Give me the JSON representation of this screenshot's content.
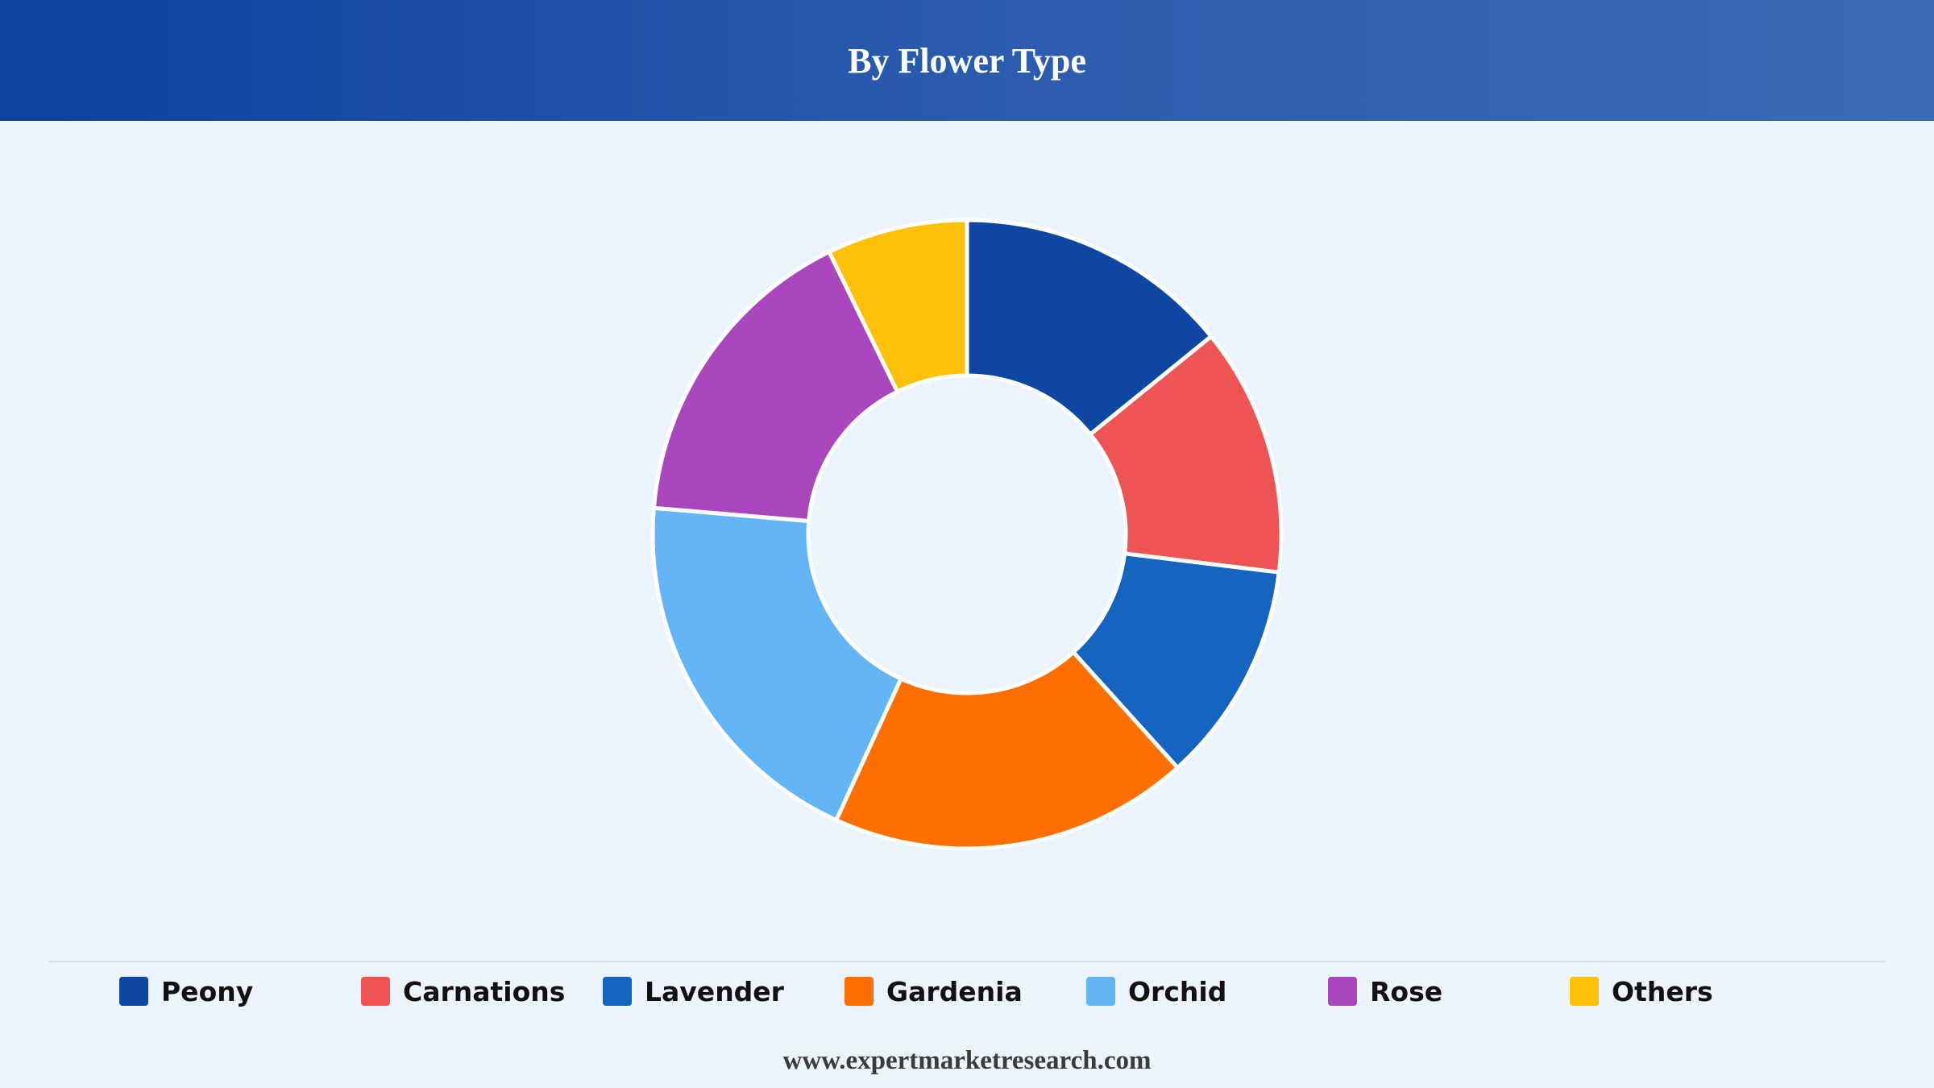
{
  "header": {
    "title": "By Flower Type"
  },
  "chart_data": {
    "type": "pie",
    "donut": true,
    "title": "By Flower Type",
    "categories": [
      "Peony",
      "Carnations",
      "Lavender",
      "Gardenia",
      "Orchid",
      "Rose",
      "Others"
    ],
    "values": [
      14.3,
      12.9,
      11.5,
      18.7,
      19.7,
      16.6,
      7.3
    ],
    "colors": [
      "#0e46a3",
      "#ef5454",
      "#1565c0",
      "#ff6f00",
      "#64b5f6",
      "#ab47bc",
      "#ffc107"
    ],
    "legend": "bottom",
    "grid": false
  },
  "footer": {
    "source": "www.expertmarketresearch.com"
  }
}
